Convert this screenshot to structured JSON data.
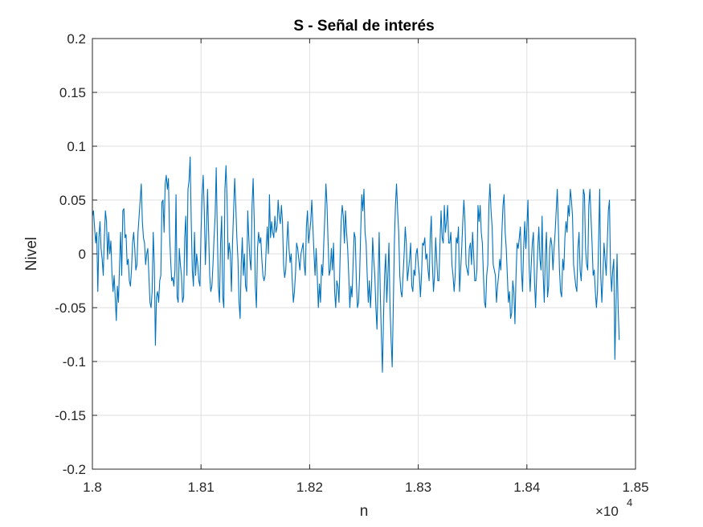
{
  "chart_data": {
    "type": "line",
    "title": "S - Señal de interés",
    "xlabel": "n",
    "ylabel": "Nivel",
    "xlim": [
      18000,
      18500
    ],
    "ylim": [
      -0.2,
      0.2
    ],
    "x_scale_exponent": "4",
    "x_scale_multiplier": "×10",
    "xticks": [
      18000,
      18100,
      18200,
      18300,
      18400,
      18500
    ],
    "xtick_labels": [
      "1.8",
      "1.81",
      "1.82",
      "1.83",
      "1.84",
      "1.85"
    ],
    "yticks": [
      -0.2,
      -0.15,
      -0.1,
      -0.05,
      0,
      0.05,
      0.1,
      0.15,
      0.2
    ],
    "ytick_labels": [
      "-0.2",
      "-0.15",
      "-0.1",
      "-0.05",
      "0",
      "0.05",
      "0.1",
      "0.15",
      "0.2"
    ],
    "grid": true,
    "colors": {
      "line": "#0072BD",
      "grid": "#dfdfdf",
      "axis": "#262626"
    },
    "series": [
      {
        "x_start": 18000,
        "x_step": 1,
        "values": [
          0.035,
          0.04,
          0.025,
          0.01,
          0.02,
          -0.035,
          0.015,
          0.03,
          0.005,
          -0.005,
          -0.02,
          0.015,
          0.04,
          0.03,
          -0.005,
          0.02,
          0,
          0.012,
          -0.018,
          -0.035,
          -0.02,
          -0.04,
          -0.062,
          -0.03,
          -0.045,
          -0.01,
          0.02,
          -0.02,
          0.04,
          0.042,
          0.015,
          0.018,
          -0.01,
          -0.005,
          -0.025,
          -0.03,
          -0.015,
          0.01,
          0.02,
          0.005,
          -0.015,
          -0.01,
          0.02,
          0.035,
          0.05,
          0.065,
          0.03,
          0.015,
          0.01,
          -0.01,
          0,
          0.005,
          -0.02,
          -0.045,
          -0.05,
          -0.035,
          0.02,
          -0.01,
          -0.085,
          -0.04,
          -0.035,
          -0.045,
          -0.025,
          -0.02,
          0.048,
          0.05,
          0.02,
          0.065,
          0.073,
          0.06,
          0.07,
          0.02,
          -0.005,
          -0.025,
          -0.022,
          -0.03,
          -0.015,
          0.055,
          -0.04,
          -0.045,
          0.005,
          -0.01,
          -0.02,
          -0.045,
          -0.04,
          0.015,
          0.035,
          -0.02,
          0.06,
          0.068,
          0.09,
          0.03,
          -0.015,
          -0.03,
          0.02,
          -0.02,
          0,
          -0.01,
          -0.025,
          -0.03,
          0.02,
          0.055,
          0.073,
          0.04,
          -0.01,
          0.02,
          0.06,
          0.02,
          -0.02,
          -0.035,
          -0.03,
          -0.01,
          0.015,
          0.035,
          0.08,
          0.02,
          -0.03,
          -0.045,
          0.01,
          0.035,
          -0.04,
          -0.05,
          0.06,
          0.082,
          0.05,
          -0.005,
          0.01,
          0,
          -0.035,
          0.01,
          0.04,
          0.07,
          0.045,
          0.015,
          -0.005,
          -0.045,
          -0.06,
          -0.01,
          0.015,
          -0.02,
          0,
          -0.03,
          -0.035,
          0.04,
          0.015,
          -0.005,
          -0.015,
          0.045,
          0.07,
          0.03,
          -0.03,
          -0.05,
          0.005,
          0.02,
          0.01,
          0.015,
          -0.005,
          -0.02,
          -0.025,
          -0.02,
          0.005,
          0.025,
          0,
          0.055,
          0.015,
          0.03,
          0.02,
          0.015,
          0.035,
          0.02,
          0.025,
          0.05,
          0.035,
          0.028,
          0.045,
          0.03,
          -0.01,
          -0.022,
          -0.015,
          0.01,
          0.03,
          0.005,
          -0.008,
          0,
          -0.025,
          -0.045,
          -0.035,
          -0.018,
          0.01,
          0.005,
          -0.005,
          -0.015,
          0,
          0.005,
          0.01,
          -0.01,
          -0.02,
          0.025,
          0.04,
          0.01,
          0.02,
          0.03,
          0.05,
          0.025,
          0,
          -0.02,
          0.005,
          -0.02,
          -0.05,
          -0.028,
          -0.045,
          -0.01,
          -0.02,
          0.01,
          0.035,
          0.065,
          0.045,
          0.01,
          -0.02,
          -0.015,
          0.005,
          -0.015,
          0.01,
          -0.035,
          -0.05,
          -0.025,
          -0.03,
          -0.045,
          -0.005,
          0.03,
          0.045,
          0.035,
          0.01,
          0.04,
          0.02,
          0.005,
          -0.02,
          -0.05,
          -0.03,
          -0.04,
          -0.01,
          0.02,
          0.015,
          -0.025,
          -0.05,
          -0.045,
          -0.02,
          0.02,
          0.055,
          0.04,
          0.06,
          0.02,
          0.01,
          -0.02,
          -0.045,
          -0.025,
          -0.05,
          -0.03,
          0.015,
          -0.005,
          -0.02,
          -0.05,
          -0.07,
          -0.025,
          0.02,
          -0.035,
          -0.075,
          -0.11,
          -0.06,
          -0.02,
          0,
          -0.045,
          -0.02,
          0.01,
          -0.05,
          -0.08,
          -0.105,
          -0.05,
          0.01,
          0.045,
          0.065,
          0.04,
          0.02,
          -0.02,
          -0.035,
          -0.04,
          -0.02,
          0,
          0.025,
          0.01,
          -0.025,
          -0.015,
          -0.005,
          0.01,
          -0.03,
          -0.035,
          -0.015,
          -0.02,
          0,
          0.005,
          -0.01,
          -0.02,
          -0.04,
          -0.02,
          0.01,
          0.008,
          0.015,
          -0.005,
          0,
          -0.015,
          -0.025,
          0.015,
          0.035,
          -0.01,
          -0.035,
          -0.02,
          0.015,
          -0.005,
          -0.025,
          -0.025,
          0.01,
          0.04,
          0.015,
          0.01,
          0.045,
          0.02,
          0.03,
          0.045,
          0.01,
          0.01,
          0.02,
          -0.01,
          -0.02,
          -0.035,
          -0.02,
          0.015,
          0.01,
          0.025,
          -0.035,
          -0.015,
          0.005,
          0.03,
          0.05,
          0.03,
          -0.01,
          -0.015,
          -0.02,
          0.005,
          0.01,
          -0.01,
          0.02,
          0,
          -0.025,
          -0.025,
          -0.015,
          0.045,
          0.03,
          0.045,
          0.02,
          0.01,
          -0.02,
          -0.045,
          -0.05,
          -0.02,
          -0.01,
          0.045,
          0.065,
          0.04,
          0.025,
          -0.01,
          -0.015,
          -0.02,
          -0.045,
          -0.03,
          -0.02,
          -0.005,
          -0.015,
          0.02,
          0.045,
          0.055,
          0.02,
          0.005,
          -0.02,
          -0.045,
          -0.035,
          -0.06,
          -0.055,
          -0.025,
          -0.035,
          -0.065,
          -0.02,
          0.01,
          0.005,
          0.015,
          0.025,
          -0.015,
          -0.035,
          0.005,
          0.03,
          0.005,
          0.025,
          0.05,
          -0.01,
          -0.035,
          -0.01,
          0.01,
          0.02,
          -0.025,
          -0.05,
          -0.02,
          0.005,
          0.025,
          -0.005,
          -0.015,
          0.035,
          -0.02,
          -0.045,
          0,
          0.02,
          -0.04,
          -0.03,
          0.005,
          0.015,
          0.008,
          -0.015,
          0.005,
          0.02,
          0.04,
          0.06,
          0.025,
          -0.015,
          -0.035,
          -0.04,
          -0.005,
          -0.015,
          0.015,
          0.03,
          0.02,
          0.045,
          0.035,
          0.06,
          0.05,
          0.035,
          -0.01,
          -0.02,
          -0.03,
          -0.035,
          0.005,
          0.02,
          -0.015,
          -0.025,
          0,
          0.06,
          0.055,
          0.005,
          -0.01,
          -0.015,
          0.045,
          0.06,
          0.035,
          0.01,
          -0.02,
          -0.015,
          -0.035,
          -0.05,
          -0.035,
          0.01,
          0.06,
          -0.02,
          -0.045,
          -0.02,
          0.01,
          -0.005,
          -0.02,
          0.01,
          0.04,
          0.05,
          -0.015,
          -0.035,
          -0.015,
          -0.005,
          -0.098,
          -0.05,
          0,
          -0.05,
          -0.08
        ]
      }
    ]
  }
}
